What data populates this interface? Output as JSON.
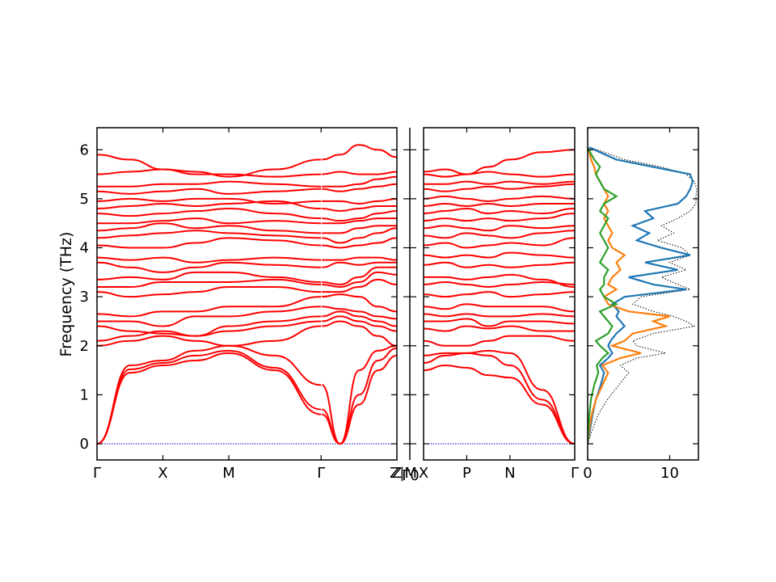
{
  "chart_data": {
    "type": "line",
    "ylabel": "Frequency (THz)",
    "ylim": [
      -0.33,
      6.45
    ],
    "yticks": [
      0,
      1,
      2,
      3,
      4,
      5,
      6
    ],
    "colors": {
      "bands": "#ff0000",
      "zero_line": "#0000cc",
      "pdos_total": "#000000"
    },
    "panels": [
      {
        "id": "path1",
        "xlim": [
          0,
          4.55
        ],
        "kpoints": [
          {
            "label": "Γ",
            "x": 0
          },
          {
            "label": "X",
            "x": 1.0
          },
          {
            "label": "M",
            "x": 2.0
          },
          {
            "label": "Γ",
            "x": 3.4
          },
          {
            "label": "Z",
            "x": 4.55
          }
        ],
        "segment_breaks": [
          3.4
        ],
        "bands": [
          [
            0,
            1.45,
            1.6,
            1.7,
            1.85,
            1.5,
            0.6,
            0,
            0.8,
            1.5,
            1.8
          ],
          [
            0,
            1.52,
            1.65,
            1.8,
            1.9,
            1.55,
            0.7,
            0,
            1.0,
            1.7,
            1.95
          ],
          [
            0,
            1.6,
            1.7,
            1.9,
            2.0,
            1.8,
            1.2,
            0,
            1.5,
            1.9,
            2.0
          ],
          [
            2.0,
            2.1,
            2.2,
            2.1,
            2.0,
            2.1,
            2.4,
            2.5,
            2.4,
            2.2,
            2.0
          ],
          [
            2.1,
            2.2,
            2.3,
            2.2,
            2.3,
            2.4,
            2.5,
            2.6,
            2.5,
            2.4,
            2.3
          ],
          [
            2.4,
            2.3,
            2.25,
            2.2,
            2.4,
            2.5,
            2.6,
            2.7,
            2.6,
            2.5,
            2.4
          ],
          [
            2.5,
            2.5,
            2.4,
            2.6,
            2.6,
            2.7,
            2.8,
            2.75,
            2.7,
            2.6,
            2.55
          ],
          [
            2.65,
            2.6,
            2.7,
            2.7,
            2.8,
            2.8,
            3.0,
            3.05,
            3.0,
            2.8,
            2.7
          ],
          [
            3.1,
            3.0,
            3.05,
            3.1,
            3.2,
            3.2,
            3.1,
            3.1,
            3.2,
            3.35,
            3.25
          ],
          [
            3.2,
            3.2,
            3.3,
            3.3,
            3.3,
            3.35,
            3.25,
            3.2,
            3.3,
            3.5,
            3.45
          ],
          [
            3.35,
            3.4,
            3.35,
            3.5,
            3.5,
            3.4,
            3.3,
            3.25,
            3.4,
            3.6,
            3.6
          ],
          [
            3.7,
            3.6,
            3.5,
            3.6,
            3.7,
            3.65,
            3.6,
            3.7,
            3.65,
            3.7,
            3.7
          ],
          [
            3.8,
            3.75,
            3.8,
            3.7,
            3.75,
            3.8,
            3.75,
            3.75,
            3.8,
            3.8,
            3.75
          ],
          [
            4.05,
            4.0,
            4.0,
            4.1,
            4.2,
            4.15,
            4.05,
            4.0,
            4.05,
            4.1,
            4.2
          ],
          [
            4.2,
            4.25,
            4.3,
            4.35,
            4.3,
            4.25,
            4.2,
            4.1,
            4.2,
            4.3,
            4.4
          ],
          [
            4.35,
            4.4,
            4.5,
            4.4,
            4.45,
            4.35,
            4.3,
            4.3,
            4.4,
            4.45,
            4.45
          ],
          [
            4.5,
            4.5,
            4.55,
            4.6,
            4.5,
            4.55,
            4.5,
            4.5,
            4.55,
            4.6,
            4.6
          ],
          [
            4.7,
            4.65,
            4.7,
            4.75,
            4.8,
            4.7,
            4.6,
            4.55,
            4.6,
            4.7,
            4.75
          ],
          [
            4.8,
            4.85,
            4.9,
            4.85,
            4.9,
            4.95,
            4.8,
            4.75,
            4.8,
            4.85,
            4.85
          ],
          [
            4.95,
            5.0,
            4.95,
            5.0,
            5.0,
            4.9,
            4.95,
            4.95,
            4.9,
            4.95,
            5.0
          ],
          [
            5.15,
            5.1,
            5.15,
            5.2,
            5.1,
            5.15,
            5.2,
            5.15,
            5.2,
            5.25,
            5.3
          ],
          [
            5.25,
            5.25,
            5.3,
            5.3,
            5.35,
            5.3,
            5.25,
            5.25,
            5.3,
            5.4,
            5.45
          ],
          [
            5.5,
            5.55,
            5.6,
            5.5,
            5.5,
            5.45,
            5.5,
            5.55,
            5.5,
            5.5,
            5.55
          ],
          [
            5.9,
            5.8,
            5.6,
            5.55,
            5.45,
            5.6,
            5.8,
            5.9,
            6.1,
            6.0,
            5.85
          ]
        ]
      },
      {
        "id": "path2",
        "xlim": [
          0,
          3.5
        ],
        "kpoints": [
          {
            "label": "X",
            "x": 0
          },
          {
            "label": "P",
            "x": 1.0
          },
          {
            "label": "N",
            "x": 2.0
          },
          {
            "label": "Γ",
            "x": 3.5
          }
        ],
        "segment_breaks": [],
        "bands": [
          [
            1.5,
            1.6,
            1.55,
            1.4,
            1.35,
            0.8,
            0
          ],
          [
            1.65,
            1.8,
            1.85,
            1.8,
            1.6,
            0.9,
            0
          ],
          [
            1.8,
            1.85,
            1.85,
            1.9,
            1.85,
            1.1,
            0
          ],
          [
            2.1,
            2.0,
            2.0,
            2.1,
            2.2,
            2.2,
            2.1
          ],
          [
            2.35,
            2.3,
            2.4,
            2.35,
            2.4,
            2.3,
            2.3
          ],
          [
            2.5,
            2.5,
            2.55,
            2.4,
            2.5,
            2.5,
            2.45
          ],
          [
            2.65,
            2.6,
            2.65,
            2.6,
            2.6,
            2.65,
            2.6
          ],
          [
            2.8,
            2.75,
            2.85,
            2.8,
            2.8,
            2.8,
            2.7
          ],
          [
            3.05,
            3.0,
            3.05,
            3.1,
            3.0,
            3.05,
            3.1
          ],
          [
            3.25,
            3.3,
            3.25,
            3.2,
            3.25,
            3.3,
            3.25
          ],
          [
            3.4,
            3.4,
            3.35,
            3.4,
            3.45,
            3.35,
            3.2
          ],
          [
            3.65,
            3.7,
            3.6,
            3.65,
            3.6,
            3.65,
            3.7
          ],
          [
            3.85,
            3.8,
            3.85,
            3.8,
            3.9,
            3.85,
            3.8
          ],
          [
            4.05,
            4.1,
            4.0,
            4.05,
            4.1,
            4.05,
            4.2
          ],
          [
            4.25,
            4.2,
            4.3,
            4.25,
            4.2,
            4.3,
            4.35
          ],
          [
            4.4,
            4.45,
            4.4,
            4.35,
            4.45,
            4.4,
            4.45
          ],
          [
            4.55,
            4.6,
            4.55,
            4.6,
            4.55,
            4.6,
            4.7
          ],
          [
            4.7,
            4.75,
            4.8,
            4.7,
            4.75,
            4.7,
            4.8
          ],
          [
            4.85,
            4.9,
            4.85,
            4.9,
            4.85,
            4.9,
            4.9
          ],
          [
            5.0,
            5.05,
            5.0,
            4.95,
            5.0,
            5.05,
            5.0
          ],
          [
            5.2,
            5.15,
            5.2,
            5.25,
            5.2,
            5.25,
            5.3
          ],
          [
            5.3,
            5.3,
            5.35,
            5.3,
            5.35,
            5.3,
            5.35
          ],
          [
            5.5,
            5.45,
            5.5,
            5.55,
            5.5,
            5.45,
            5.5
          ],
          [
            5.55,
            5.6,
            5.5,
            5.65,
            5.8,
            5.95,
            6.0
          ]
        ]
      }
    ],
    "break_panel": {
      "tick_labels": [
        "Z|M",
        "Γ0"
      ]
    },
    "pdos": {
      "xlim": [
        0,
        13.5
      ],
      "xticks": [
        0,
        10
      ],
      "freq": [
        0,
        0.3,
        0.6,
        0.9,
        1.2,
        1.45,
        1.6,
        1.75,
        1.85,
        2.0,
        2.1,
        2.25,
        2.4,
        2.5,
        2.6,
        2.7,
        2.85,
        3.0,
        3.15,
        3.25,
        3.4,
        3.55,
        3.7,
        3.85,
        4.0,
        4.15,
        4.3,
        4.45,
        4.6,
        4.75,
        4.9,
        5.05,
        5.2,
        5.35,
        5.5,
        5.65,
        5.8,
        5.95,
        6.05
      ],
      "series": [
        {
          "color": "#000000",
          "dash": true,
          "values": [
            0,
            0.6,
            1.3,
            2.4,
            3.8,
            5.0,
            4.0,
            6.0,
            9.5,
            6.0,
            5.5,
            8.0,
            13.0,
            12.0,
            10.5,
            8.0,
            5.5,
            6.5,
            12.5,
            11.0,
            9.0,
            12.0,
            10.0,
            12.5,
            11.5,
            8.5,
            10.5,
            9.0,
            11.0,
            12.5,
            13.2,
            13.2,
            13.3,
            13.0,
            12.0,
            9.0,
            4.5,
            2.0,
            0.3
          ]
        },
        {
          "color": "#1f77b4",
          "dash": false,
          "values": [
            0,
            0.3,
            0.6,
            1.0,
            1.6,
            2.0,
            1.5,
            2.5,
            3.0,
            2.5,
            2.8,
            3.5,
            4.5,
            4.0,
            3.5,
            3.8,
            3.0,
            4.5,
            12.0,
            8.0,
            5.0,
            11.0,
            7.0,
            12.5,
            9.0,
            6.0,
            7.5,
            5.5,
            8.0,
            7.0,
            11.0,
            12.0,
            12.5,
            12.8,
            12.5,
            8.0,
            3.5,
            1.5,
            0.2
          ]
        },
        {
          "color": "#ff7f0e",
          "dash": false,
          "values": [
            0,
            0.2,
            0.5,
            1.0,
            1.8,
            2.5,
            1.8,
            4.0,
            6.5,
            3.0,
            4.5,
            5.5,
            9.5,
            8.0,
            10.0,
            5.0,
            2.5,
            2.0,
            3.5,
            2.5,
            3.0,
            4.0,
            3.5,
            4.5,
            3.0,
            2.5,
            3.0,
            2.5,
            2.0,
            2.5,
            2.0,
            2.5,
            2.0,
            1.5,
            1.0,
            0.8,
            0.4,
            0.2,
            0
          ]
        },
        {
          "color": "#2ca02c",
          "dash": false,
          "values": [
            0,
            0.1,
            0.2,
            0.4,
            0.8,
            1.3,
            1.1,
            1.8,
            2.5,
            1.5,
            1.0,
            2.5,
            3.0,
            2.5,
            2.0,
            1.5,
            3.5,
            2.0,
            1.5,
            2.0,
            2.0,
            2.5,
            1.5,
            2.0,
            2.5,
            2.0,
            1.5,
            2.0,
            2.5,
            1.5,
            2.0,
            3.5,
            2.0,
            1.5,
            1.0,
            1.5,
            0.8,
            0.3,
            0
          ]
        }
      ]
    }
  }
}
